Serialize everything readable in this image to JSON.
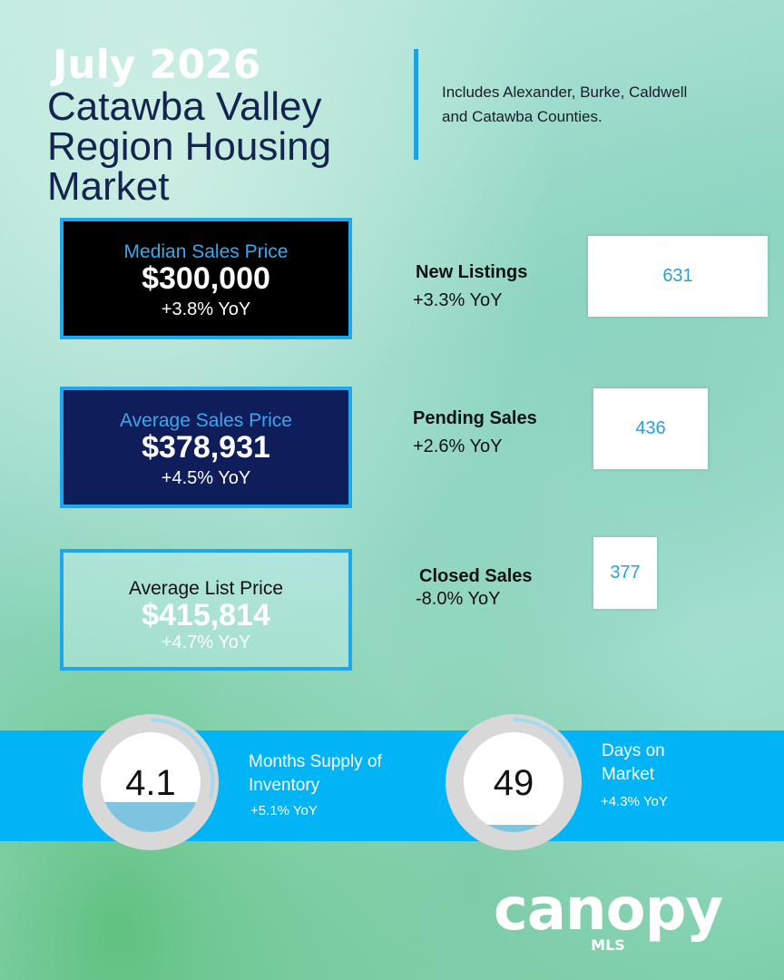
{
  "header": {
    "date": "July 2026",
    "title": "Catawba Valley Region Housing Market",
    "note": "Includes Alexander, Burke, Caldwell and Catawba Counties."
  },
  "price_cards": [
    {
      "label": "Median Sales Price",
      "value": "$300,000",
      "change": "+3.8% YoY"
    },
    {
      "label": "Average Sales Price",
      "value": "$378,931",
      "change": "+4.5% YoY"
    },
    {
      "label": "Average List Price",
      "value": "$415,814",
      "change": "+4.7% YoY"
    }
  ],
  "stats": [
    {
      "label": "New Listings",
      "change": "+3.3% YoY",
      "value": 631
    },
    {
      "label": "Pending Sales",
      "change": "+2.6% YoY",
      "value": 436
    },
    {
      "label": "Closed Sales",
      "change": "-8.0% YoY",
      "value": 377
    }
  ],
  "gauges": [
    {
      "value": "4.1",
      "label": "Months Supply of Inventory",
      "change": "+5.1% YoY"
    },
    {
      "value": "49",
      "label": "Days on Market",
      "change": "+4.3% YoY"
    }
  ],
  "logo": {
    "name": "canopy",
    "sub": "MLS"
  }
}
